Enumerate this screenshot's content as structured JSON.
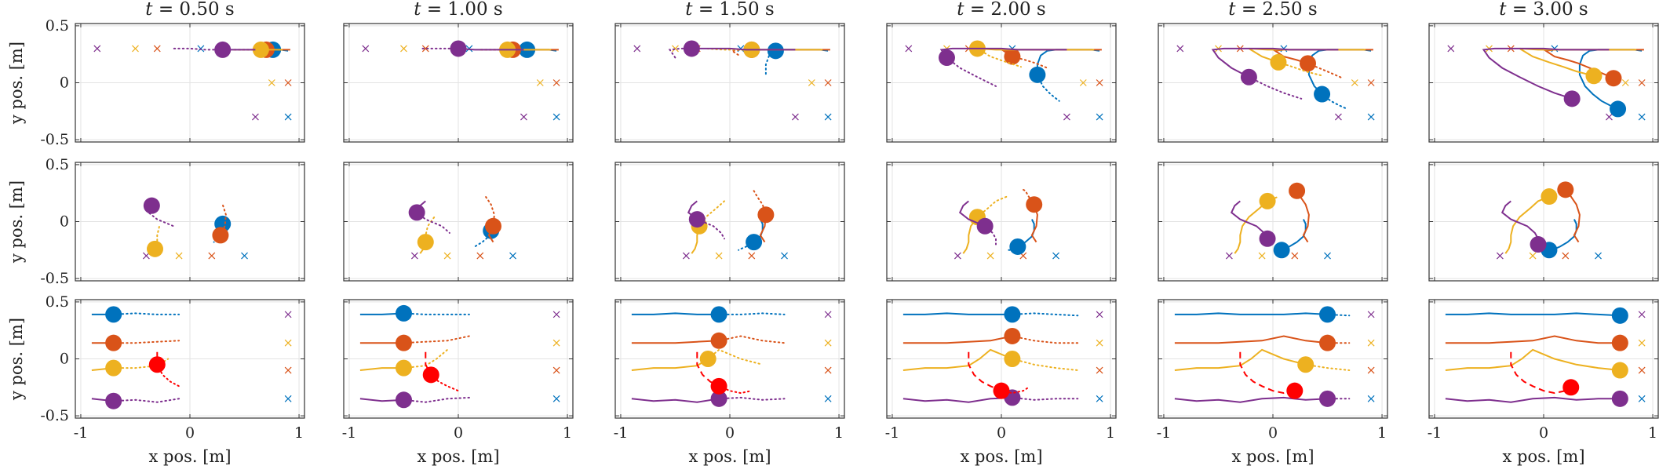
{
  "chart_data": {
    "type": "line",
    "columns": [
      "t = 0.50 s",
      "t = 1.00 s",
      "t = 1.50 s",
      "t = 2.00 s",
      "t = 2.50 s",
      "t = 3.00 s"
    ],
    "column_titles": [
      {
        "var": "t",
        "text": " = 0.50 s"
      },
      {
        "var": "t",
        "text": " = 1.00 s"
      },
      {
        "var": "t",
        "text": " = 1.50 s"
      },
      {
        "var": "t",
        "text": " = 2.00 s"
      },
      {
        "var": "t",
        "text": " = 2.50 s"
      },
      {
        "var": "t",
        "text": " = 3.00 s"
      }
    ],
    "xlabel": "x pos. [m]",
    "ylabel": "y pos. [m]",
    "xlim": [
      -1.05,
      1.05
    ],
    "ylim": [
      -0.52,
      0.52
    ],
    "xticks": [
      -1,
      0,
      1
    ],
    "xtick_labels": [
      "-1",
      "0",
      "1"
    ],
    "yticks": [
      -0.5,
      0,
      0.5
    ],
    "ytick_labels": [
      "-0.5",
      "0",
      "0.5"
    ],
    "grid": true,
    "colors": {
      "blue": "#0072BD",
      "orange": "#D95319",
      "yellow": "#EDB120",
      "purple": "#7E2F8E",
      "red": "#FF0000"
    },
    "rows": [
      {
        "agents": [
          {
            "color": "blue",
            "goal": [
              0.1,
              0.3
            ],
            "path": [
              [
                0.9,
                0.28
              ],
              [
                0.83,
                0.29
              ],
              [
                0.76,
                0.29
              ],
              [
                0.7,
                0.29
              ],
              [
                0.63,
                0.29
              ],
              [
                0.57,
                0.29
              ],
              [
                0.5,
                0.29
              ],
              [
                0.42,
                0.28
              ],
              [
                0.36,
                0.24
              ],
              [
                0.33,
                0.16
              ],
              [
                0.33,
                0.07
              ],
              [
                0.38,
                -0.03
              ],
              [
                0.45,
                -0.1
              ],
              [
                0.53,
                -0.16
              ],
              [
                0.61,
                -0.2
              ],
              [
                0.68,
                -0.23
              ]
            ]
          },
          {
            "color": "orange",
            "goal": [
              -0.5,
              0.3
            ],
            "path": [
              [
                0.92,
                0.29
              ],
              [
                0.8,
                0.29
              ],
              [
                0.7,
                0.29
              ],
              [
                0.6,
                0.29
              ],
              [
                0.5,
                0.29
              ],
              [
                0.4,
                0.29
              ],
              [
                0.3,
                0.29
              ],
              [
                0.2,
                0.29
              ],
              [
                0.1,
                0.29
              ],
              [
                0.02,
                0.28
              ],
              [
                0.1,
                0.23
              ],
              [
                0.22,
                0.2
              ],
              [
                0.32,
                0.17
              ],
              [
                0.42,
                0.13
              ],
              [
                0.52,
                0.09
              ],
              [
                0.64,
                0.04
              ]
            ]
          },
          {
            "color": "yellow",
            "goal": [
              -0.3,
              0.3
            ],
            "path": [
              [
                0.85,
                0.29
              ],
              [
                0.75,
                0.29
              ],
              [
                0.65,
                0.29
              ],
              [
                0.55,
                0.29
              ],
              [
                0.45,
                0.29
              ],
              [
                0.35,
                0.29
              ],
              [
                0.27,
                0.29
              ],
              [
                0.2,
                0.29
              ],
              [
                0.1,
                0.29
              ],
              [
                -0.05,
                0.29
              ],
              [
                -0.22,
                0.3
              ],
              [
                -0.1,
                0.23
              ],
              [
                0.05,
                0.18
              ],
              [
                0.18,
                0.14
              ],
              [
                0.3,
                0.1
              ],
              [
                0.46,
                0.06
              ]
            ]
          },
          {
            "color": "purple",
            "goal": [
              -0.8,
              0.3
            ],
            "path": [
              [
                0.6,
                0.29
              ],
              [
                0.45,
                0.29
              ],
              [
                0.3,
                0.29
              ],
              [
                0.15,
                0.29
              ],
              [
                0.0,
                0.3
              ],
              [
                -0.15,
                0.3
              ],
              [
                -0.25,
                0.3
              ],
              [
                -0.35,
                0.3
              ],
              [
                -0.45,
                0.3
              ],
              [
                -0.55,
                0.29
              ],
              [
                -0.5,
                0.22
              ],
              [
                -0.38,
                0.13
              ],
              [
                -0.22,
                0.05
              ],
              [
                -0.05,
                -0.03
              ],
              [
                0.1,
                -0.09
              ],
              [
                0.26,
                -0.14
              ]
            ]
          }
        ],
        "goals_xy": [
          [
            0.8,
            -0.3
          ],
          [
            0.9,
            0
          ],
          [
            0.75,
            0
          ],
          [
            0.6,
            -0.3
          ]
        ],
        "marks": [
          [
            -0.85,
            0.3
          ],
          [
            -0.5,
            0.3
          ],
          [
            -0.3,
            0.3
          ],
          [
            0.1,
            0.3
          ],
          [
            0.6,
            -0.3
          ],
          [
            0.9,
            -0.3
          ],
          [
            0.75,
            0
          ],
          [
            0.9,
            0
          ]
        ]
      },
      {
        "agents": [
          {
            "color": "blue",
            "path": [
              [
                0.28,
                0.02
              ],
              [
                0.3,
                -0.02
              ],
              [
                0.3,
                -0.08
              ],
              [
                0.28,
                -0.13
              ],
              [
                0.22,
                -0.18
              ],
              [
                0.15,
                -0.22
              ],
              [
                0.1,
                -0.24
              ],
              [
                0.08,
                -0.25
              ],
              [
                0.05,
                -0.25
              ]
            ]
          },
          {
            "color": "orange",
            "path": [
              [
                0.32,
                -0.18
              ],
              [
                0.28,
                -0.12
              ],
              [
                0.32,
                -0.04
              ],
              [
                0.33,
                0.06
              ],
              [
                0.3,
                0.15
              ],
              [
                0.25,
                0.22
              ],
              [
                0.22,
                0.27
              ],
              [
                0.2,
                0.28
              ]
            ]
          },
          {
            "color": "yellow",
            "path": [
              [
                -0.35,
                -0.28
              ],
              [
                -0.32,
                -0.24
              ],
              [
                -0.3,
                -0.18
              ],
              [
                -0.3,
                -0.12
              ],
              [
                -0.28,
                -0.04
              ],
              [
                -0.22,
                0.04
              ],
              [
                -0.12,
                0.12
              ],
              [
                -0.05,
                0.18
              ],
              [
                0.05,
                0.22
              ]
            ]
          },
          {
            "color": "purple",
            "path": [
              [
                -0.3,
                0.18
              ],
              [
                -0.35,
                0.14
              ],
              [
                -0.38,
                0.08
              ],
              [
                -0.3,
                0.02
              ],
              [
                -0.15,
                -0.04
              ],
              [
                -0.08,
                -0.1
              ],
              [
                -0.05,
                -0.15
              ],
              [
                -0.05,
                -0.2
              ]
            ]
          }
        ],
        "marks": [
          [
            -0.4,
            -0.3
          ],
          [
            -0.1,
            -0.3
          ],
          [
            0.2,
            -0.3
          ],
          [
            0.5,
            -0.3
          ]
        ]
      },
      {
        "agents": [
          {
            "color": "blue",
            "path": [
              [
                -0.9,
                0.39
              ],
              [
                -0.7,
                0.39
              ],
              [
                -0.5,
                0.4
              ],
              [
                -0.3,
                0.39
              ],
              [
                -0.1,
                0.39
              ],
              [
                0.1,
                0.39
              ],
              [
                0.3,
                0.4
              ],
              [
                0.5,
                0.39
              ],
              [
                0.7,
                0.38
              ]
            ]
          },
          {
            "color": "orange",
            "path": [
              [
                -0.9,
                0.14
              ],
              [
                -0.7,
                0.14
              ],
              [
                -0.5,
                0.14
              ],
              [
                -0.3,
                0.15
              ],
              [
                -0.1,
                0.16
              ],
              [
                0.1,
                0.2
              ],
              [
                0.3,
                0.16
              ],
              [
                0.5,
                0.14
              ],
              [
                0.7,
                0.14
              ]
            ]
          },
          {
            "color": "yellow",
            "path": [
              [
                -0.9,
                -0.1
              ],
              [
                -0.7,
                -0.08
              ],
              [
                -0.5,
                -0.08
              ],
              [
                -0.3,
                -0.06
              ],
              [
                -0.2,
                0.0
              ],
              [
                -0.1,
                0.08
              ],
              [
                0.1,
                0.0
              ],
              [
                0.3,
                -0.05
              ],
              [
                0.5,
                -0.08
              ],
              [
                0.7,
                -0.1
              ]
            ]
          },
          {
            "color": "purple",
            "path": [
              [
                -0.9,
                -0.35
              ],
              [
                -0.7,
                -0.37
              ],
              [
                -0.5,
                -0.36
              ],
              [
                -0.3,
                -0.38
              ],
              [
                -0.1,
                -0.35
              ],
              [
                0.1,
                -0.34
              ],
              [
                0.3,
                -0.36
              ],
              [
                0.5,
                -0.35
              ],
              [
                0.7,
                -0.35
              ]
            ]
          },
          {
            "color": "red",
            "path": [
              [
                -0.3,
                0.06
              ],
              [
                -0.3,
                -0.05
              ],
              [
                -0.25,
                -0.14
              ],
              [
                -0.18,
                -0.2
              ],
              [
                -0.1,
                -0.24
              ],
              [
                0.0,
                -0.28
              ],
              [
                0.1,
                -0.3
              ],
              [
                0.2,
                -0.28
              ],
              [
                0.25,
                -0.25
              ]
            ]
          }
        ],
        "marks": [
          [
            0.9,
            0.39
          ],
          [
            0.9,
            0.14
          ],
          [
            0.9,
            -0.1
          ],
          [
            0.9,
            -0.35
          ]
        ]
      }
    ]
  }
}
